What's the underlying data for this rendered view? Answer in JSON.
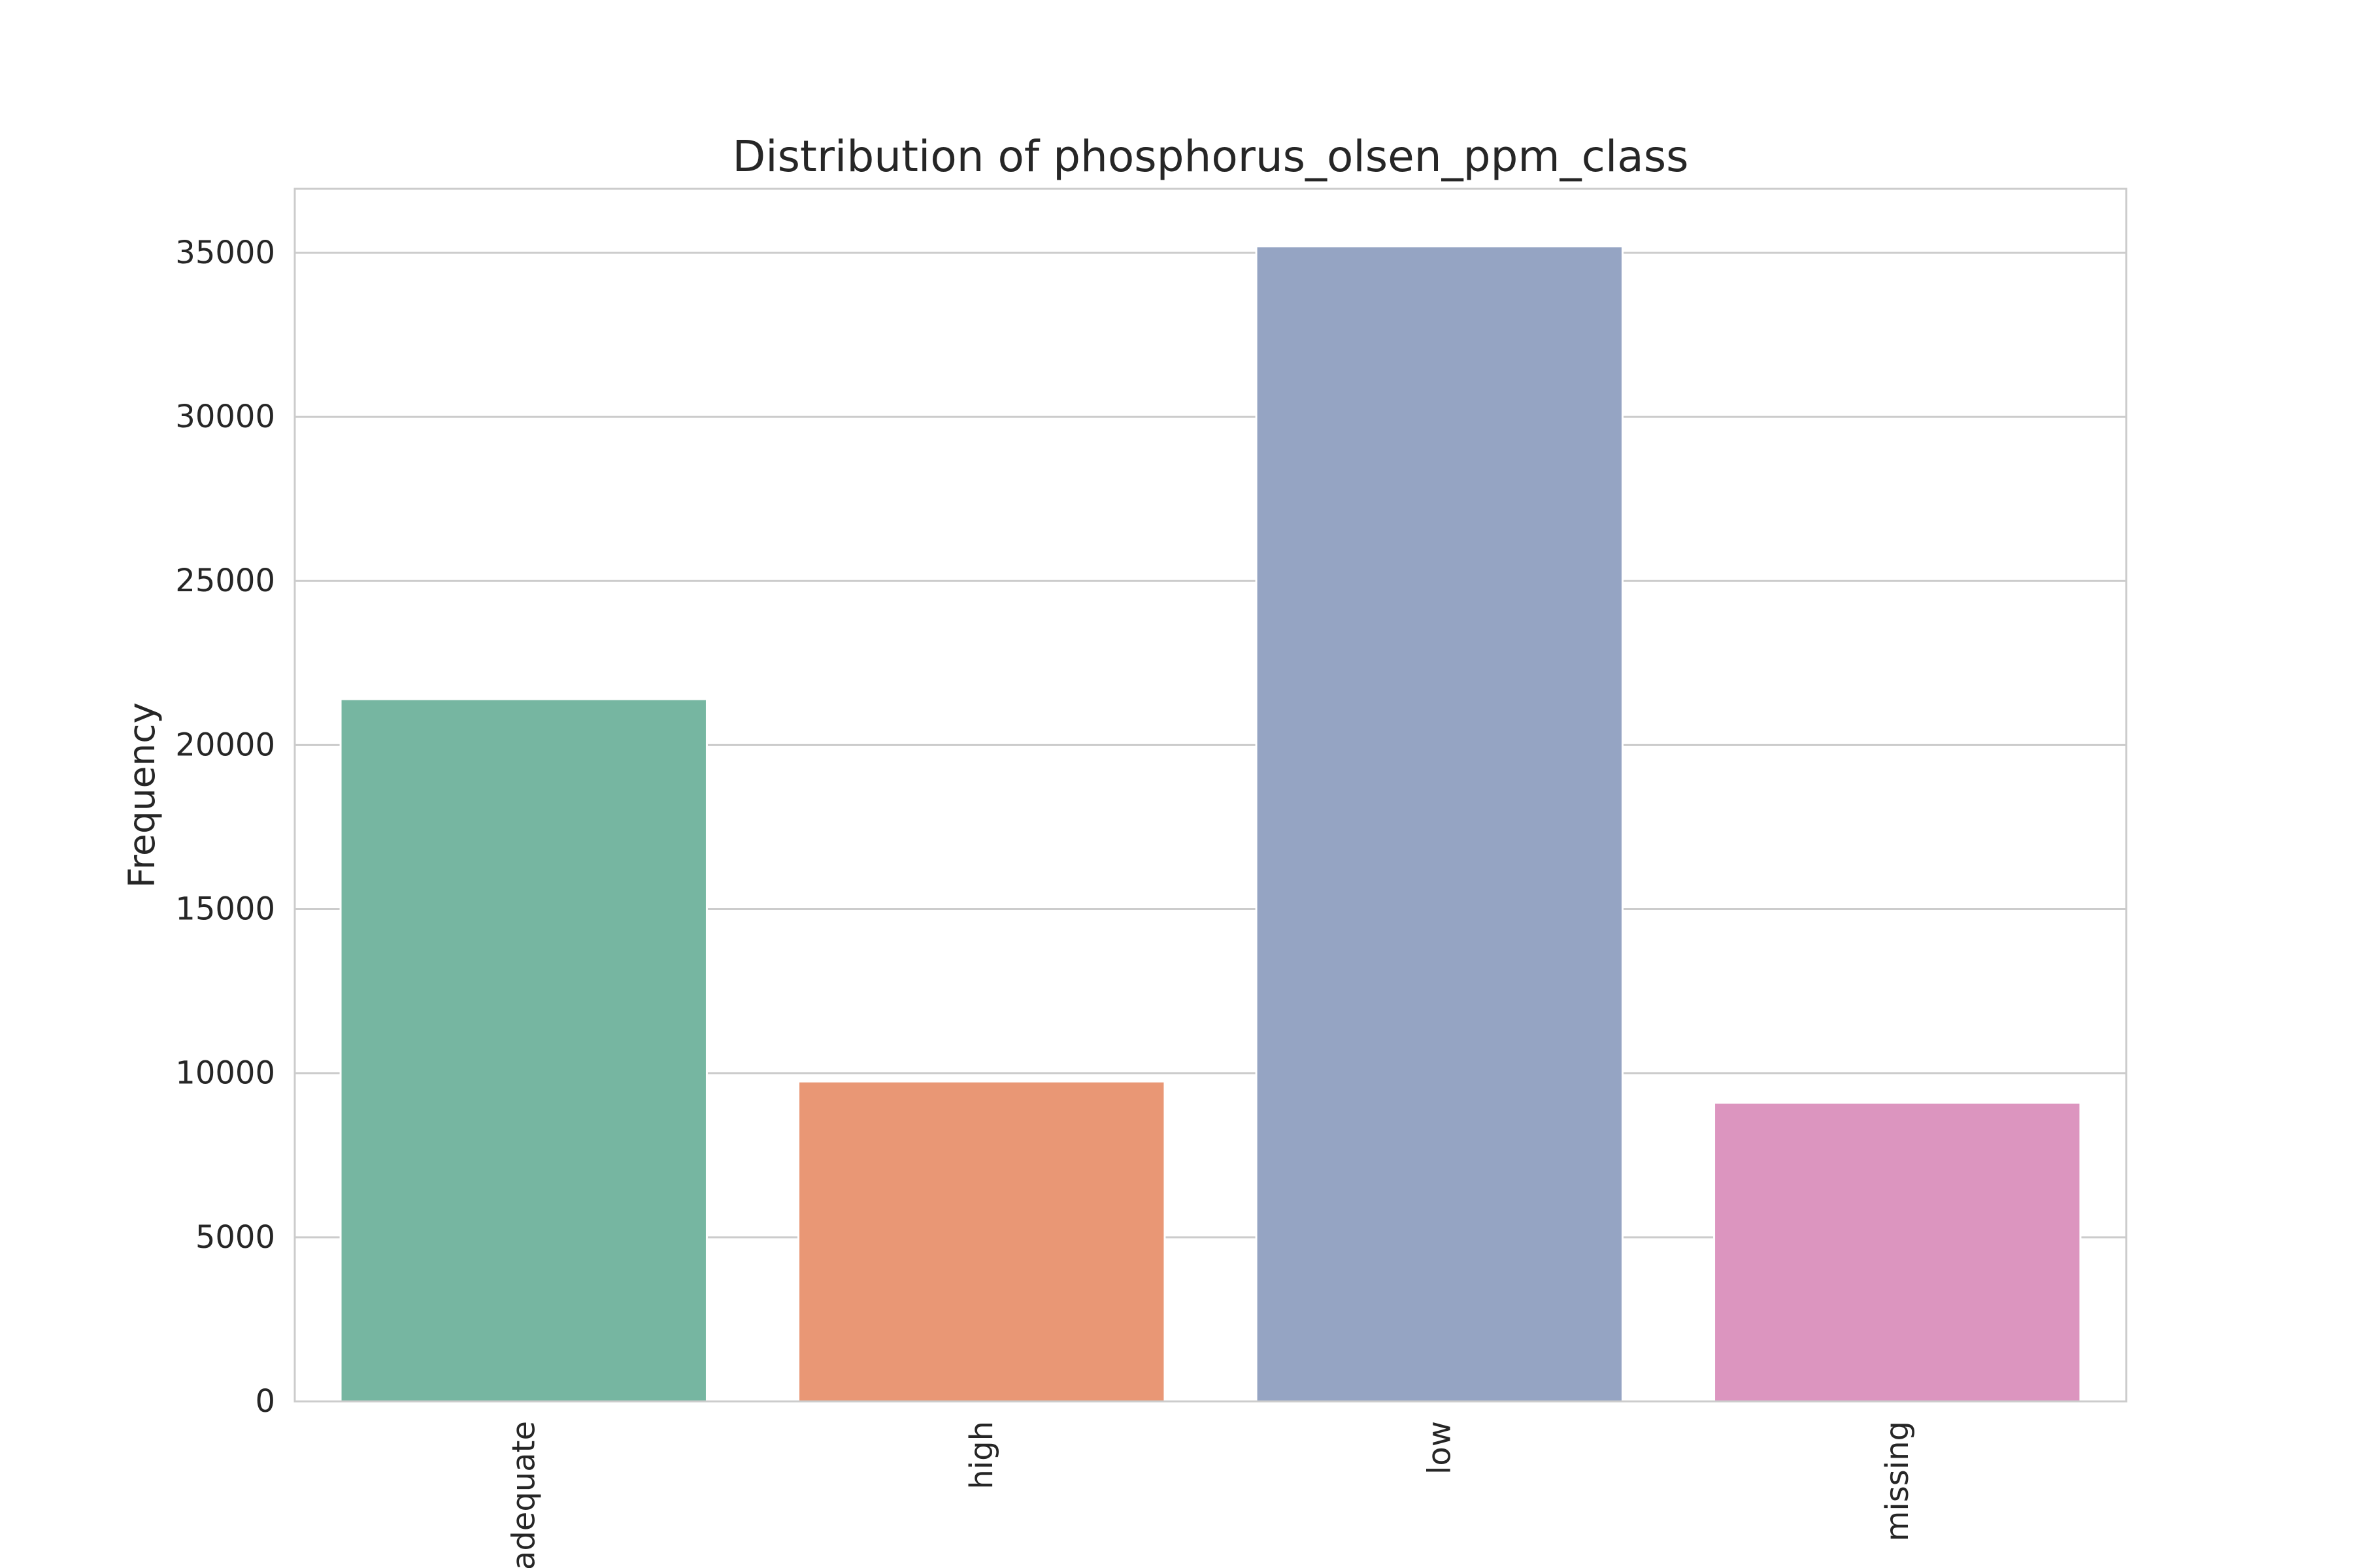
{
  "chart_data": {
    "type": "bar",
    "title": "Distribution of phosphorus_olsen_ppm_class",
    "xlabel": "",
    "ylabel": "Frequency",
    "categories": [
      "adequate",
      "high",
      "low",
      "missing"
    ],
    "values": [
      21400,
      9750,
      35200,
      9100
    ],
    "colors": [
      "#76b6a1",
      "#e99775",
      "#95a4c3",
      "#dc95bf"
    ],
    "ylim": [
      0,
      36950
    ],
    "yticks": [
      0,
      5000,
      10000,
      15000,
      20000,
      25000,
      30000,
      35000
    ],
    "grid": true,
    "legend": "none"
  }
}
